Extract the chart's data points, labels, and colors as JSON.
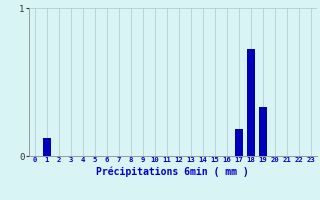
{
  "title": "",
  "xlabel": "Précipitations 6min ( mm )",
  "ylabel": "",
  "hours": [
    0,
    1,
    2,
    3,
    4,
    5,
    6,
    7,
    8,
    9,
    10,
    11,
    12,
    13,
    14,
    15,
    16,
    17,
    18,
    19,
    20,
    21,
    22,
    23
  ],
  "values": [
    0,
    0.12,
    0,
    0,
    0,
    0,
    0,
    0,
    0,
    0,
    0,
    0,
    0,
    0,
    0,
    0,
    0,
    0.18,
    0.72,
    0.33,
    0,
    0,
    0,
    0
  ],
  "bar_color": "#0000bb",
  "bg_color": "#d8f4f4",
  "grid_color": "#aac8c8",
  "axis_color": "#999999",
  "text_color": "#0000cc",
  "ylim": [
    0,
    1.0
  ],
  "yticks": [
    0,
    1
  ],
  "xlim": [
    -0.5,
    23.5
  ]
}
